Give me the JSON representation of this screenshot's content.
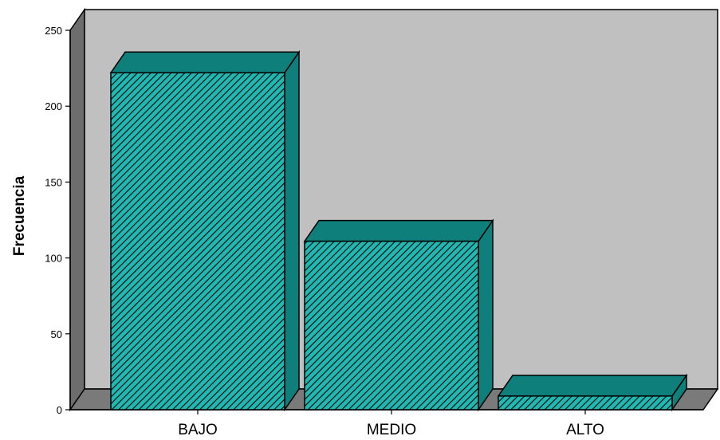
{
  "chart_data": {
    "type": "bar",
    "title": "",
    "xlabel": "",
    "ylabel": "Frecuencia",
    "categories": [
      "BAJO",
      "MEDIO",
      "ALTO"
    ],
    "values": [
      222,
      111,
      9
    ],
    "ylim": [
      0,
      250
    ],
    "yticks": [
      "0",
      "50",
      "100",
      "150",
      "200",
      "250"
    ],
    "grid": false,
    "legend": "none",
    "style": "3d-hatched",
    "colors": {
      "bar_front": "#1fb8b3",
      "bar_side": "#0e7f7b",
      "hatch": "#000000",
      "plot_back": "#c0c0c0",
      "floor": "#7a7a7a",
      "wall_left": "#6d6d6d"
    }
  }
}
